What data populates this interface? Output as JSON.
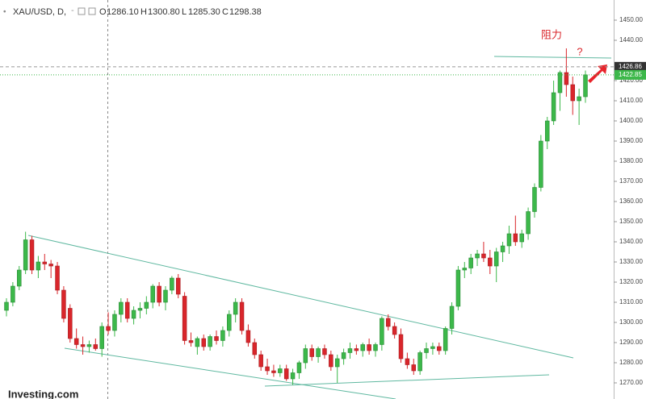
{
  "chart_data": {
    "type": "candlestick",
    "header": {
      "symbol": "XAU/USD, D,",
      "dash": "-",
      "open_label": "O",
      "open": "1286.10",
      "high_label": "H",
      "high": "1300.80",
      "low_label": "L",
      "low": "1285.30",
      "close_label": "C",
      "close": "1298.38"
    },
    "annotations": [
      "阻力",
      "?"
    ],
    "logo": "Investing.com",
    "colors": {
      "up": "#3cb84a",
      "down": "#d9262b"
    },
    "open": [
      1306,
      1310,
      1318,
      1326,
      1341,
      1326,
      1330,
      1329,
      1328,
      1316,
      1307,
      1292,
      1289,
      1288,
      1289,
      1287,
      1298,
      1296,
      1304,
      1310,
      1302,
      1306,
      1307,
      1310,
      1318,
      1310,
      1316,
      1322,
      1313,
      1291,
      1288,
      1292,
      1288,
      1293,
      1291,
      1296,
      1304,
      1310,
      1296,
      1290,
      1284,
      1278,
      1276,
      1275,
      1277,
      1272,
      1275,
      1280,
      1287,
      1283,
      1287,
      1284,
      1278,
      1282,
      1285,
      1287,
      1286,
      1289,
      1286,
      1289,
      1302,
      1298,
      1294,
      1282,
      1279,
      1276,
      1285,
      1287,
      1288,
      1286,
      1297,
      1308,
      1326,
      1327,
      1332,
      1334,
      1332,
      1328,
      1335,
      1338,
      1344,
      1340,
      1344,
      1355,
      1367,
      1390,
      1400,
      1414,
      1424,
      1418,
      1410,
      1412
    ],
    "high": [
      1312,
      1320,
      1328,
      1345,
      1343,
      1333,
      1334,
      1331,
      1330,
      1318,
      1309,
      1297,
      1293,
      1291,
      1292,
      1300,
      1305,
      1306,
      1312,
      1312,
      1308,
      1310,
      1313,
      1319,
      1320,
      1318,
      1323,
      1324,
      1315,
      1295,
      1293,
      1294,
      1294,
      1296,
      1298,
      1306,
      1312,
      1312,
      1299,
      1292,
      1286,
      1282,
      1279,
      1279,
      1279,
      1277,
      1281,
      1289,
      1289,
      1288,
      1289,
      1286,
      1284,
      1287,
      1290,
      1289,
      1290,
      1292,
      1290,
      1303,
      1304,
      1300,
      1297,
      1285,
      1282,
      1286,
      1290,
      1290,
      1290,
      1298,
      1310,
      1328,
      1330,
      1334,
      1336,
      1340,
      1336,
      1337,
      1340,
      1348,
      1353,
      1346,
      1357,
      1369,
      1393,
      1402,
      1420,
      1425,
      1436,
      1422,
      1416,
      1425
    ],
    "low": [
      1303,
      1308,
      1316,
      1324,
      1324,
      1322,
      1326,
      1322,
      1314,
      1300,
      1290,
      1287,
      1284,
      1285,
      1286,
      1283,
      1294,
      1293,
      1300,
      1300,
      1299,
      1302,
      1304,
      1307,
      1308,
      1306,
      1314,
      1312,
      1289,
      1288,
      1284,
      1286,
      1286,
      1289,
      1288,
      1293,
      1300,
      1294,
      1288,
      1282,
      1276,
      1274,
      1273,
      1273,
      1271,
      1269,
      1272,
      1277,
      1281,
      1280,
      1282,
      1276,
      1270,
      1279,
      1282,
      1284,
      1283,
      1284,
      1283,
      1286,
      1296,
      1292,
      1280,
      1277,
      1274,
      1274,
      1282,
      1284,
      1284,
      1284,
      1294,
      1306,
      1322,
      1324,
      1328,
      1330,
      1324,
      1320,
      1330,
      1334,
      1338,
      1337,
      1341,
      1352,
      1365,
      1386,
      1398,
      1405,
      1412,
      1403,
      1398,
      1409
    ],
    "close": [
      1310,
      1318,
      1326,
      1341,
      1326,
      1330,
      1329,
      1328,
      1316,
      1302,
      1292,
      1289,
      1288,
      1289,
      1287,
      1298,
      1296,
      1304,
      1310,
      1302,
      1306,
      1307,
      1310,
      1318,
      1310,
      1316,
      1322,
      1314,
      1291,
      1290,
      1292,
      1288,
      1293,
      1291,
      1296,
      1304,
      1310,
      1296,
      1290,
      1284,
      1278,
      1276,
      1275,
      1277,
      1272,
      1275,
      1280,
      1287,
      1283,
      1287,
      1284,
      1278,
      1282,
      1285,
      1287,
      1286,
      1289,
      1286,
      1289,
      1302,
      1298,
      1294,
      1282,
      1279,
      1276,
      1285,
      1287,
      1288,
      1286,
      1297,
      1308,
      1326,
      1327,
      1332,
      1334,
      1332,
      1328,
      1335,
      1338,
      1344,
      1340,
      1344,
      1355,
      1367,
      1390,
      1400,
      1414,
      1424,
      1418,
      1410,
      1412,
      1422.85
    ],
    "crosshair_price": 1426.86,
    "last_price": 1422.85,
    "ylim": [
      1262,
      1460
    ],
    "yticks": [
      {
        "value": 1270,
        "label": "1270.00"
      },
      {
        "value": 1280,
        "label": "1280.00"
      },
      {
        "value": 1290,
        "label": "1290.00"
      },
      {
        "value": 1300,
        "label": "1300.00"
      },
      {
        "value": 1310,
        "label": "1310.00"
      },
      {
        "value": 1320,
        "label": "1320.00"
      },
      {
        "value": 1330,
        "label": "1330.00"
      },
      {
        "value": 1340,
        "label": "1340.00"
      },
      {
        "value": 1350,
        "label": "1350.00"
      },
      {
        "value": 1360,
        "label": "1360.00"
      },
      {
        "value": 1370,
        "label": "1370.00"
      },
      {
        "value": 1380,
        "label": "1380.00"
      },
      {
        "value": 1390,
        "label": "1390.00"
      },
      {
        "value": 1400,
        "label": "1400.00"
      },
      {
        "value": 1410,
        "label": "1410.00"
      },
      {
        "value": 1420,
        "label": "1420.00"
      },
      {
        "value": 1440,
        "label": "1440.00"
      },
      {
        "value": 1450,
        "label": "1450.00"
      }
    ]
  }
}
